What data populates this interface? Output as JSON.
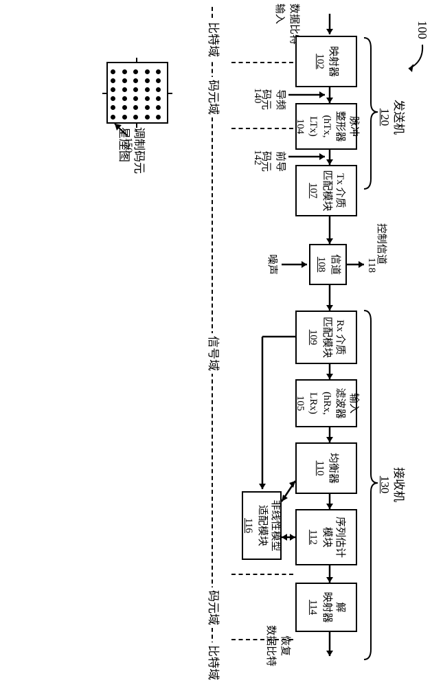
{
  "figure": {
    "fig_ref": "100"
  },
  "tx": {
    "title": "发送机",
    "id": "120",
    "input_label": "数据比特\n输入",
    "mapper": {
      "title": "映射器",
      "id": "102"
    },
    "pulse": {
      "title": "脉冲\n整形器\n(hTx,\nLTx)",
      "id": "104"
    },
    "txmed": {
      "title": "Tx 介质\n匹配模块",
      "id": "107"
    },
    "pilot": "导频\n码元",
    "pilot_id": "140",
    "preamble": "前导\n码元",
    "preamble_id": "142"
  },
  "channel": {
    "title": "信道",
    "id": "108",
    "ctrl": "控制信道",
    "ctrl_id": "118",
    "noise": "噪声"
  },
  "rx": {
    "title": "接收机",
    "id": "130",
    "rxmed": {
      "title": "Rx 介质\n匹配模块",
      "id": "109"
    },
    "infilt": {
      "title": "输入\n滤波器\n(hRx,\nLRx)",
      "id": "105"
    },
    "eq": {
      "title": "均衡器",
      "id": "110"
    },
    "seq": {
      "title": "序列估计\n模块",
      "id": "112"
    },
    "demap": {
      "title": "解\n映射器",
      "id": "114"
    },
    "nl": {
      "title": "非线性模型\n适配模块",
      "id": "116"
    },
    "outlabel": "恢复\n数据比特"
  },
  "domains": {
    "bit": "比特域",
    "sym": "码元域",
    "sig": "信号域"
  },
  "const": {
    "label": "调制码元\n星座图",
    "id": "150"
  },
  "style": {
    "stroke": "#000000",
    "bg": "#ffffff",
    "font_main": 15,
    "font_section": 17
  }
}
